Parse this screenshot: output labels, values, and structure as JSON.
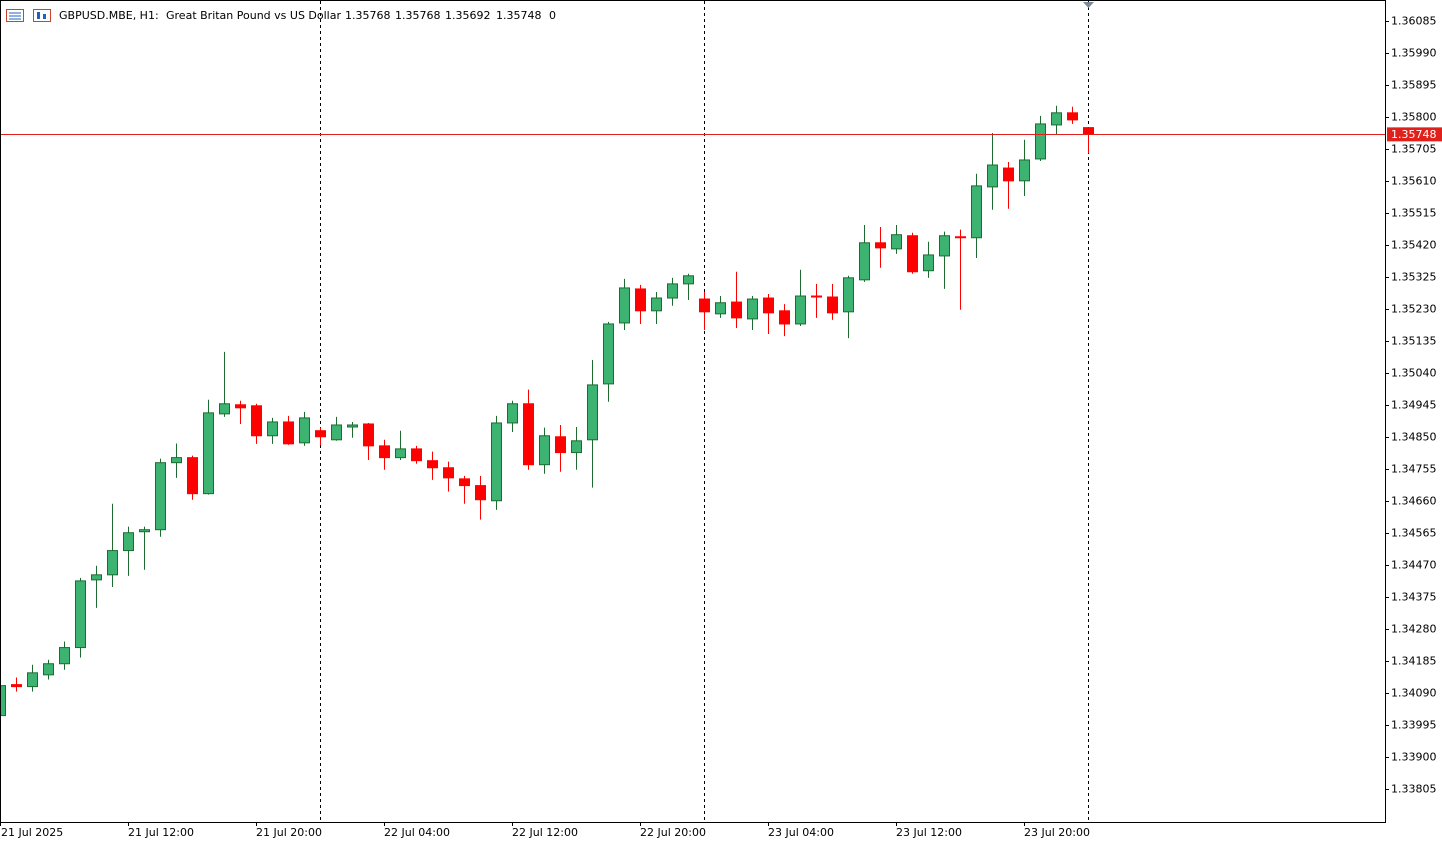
{
  "chart_data": {
    "type": "candlestick",
    "symbol": "GBPUSD.MBE, H1:",
    "description": "Great Britan Pound vs US Dollar",
    "header_values": [
      1.35768,
      1.35768,
      1.35692,
      1.35748,
      0
    ],
    "current_price": 1.35748,
    "up_color": "#3cb371",
    "down_color": "#ff0000",
    "price_line_color": "#e0201a",
    "categories": [
      "21 Jul 2025",
      null,
      null,
      null,
      null,
      null,
      null,
      null,
      "21 Jul 12:00",
      null,
      null,
      null,
      null,
      null,
      null,
      null,
      "21 Jul 20:00",
      null,
      null,
      null,
      null,
      null,
      null,
      null,
      "22 Jul 04:00",
      null,
      null,
      null,
      null,
      null,
      null,
      null,
      "22 Jul 12:00",
      null,
      null,
      null,
      null,
      null,
      null,
      null,
      "22 Jul 20:00",
      null,
      null,
      null,
      null,
      null,
      null,
      null,
      "23 Jul 04:00",
      null,
      null,
      null,
      null,
      null,
      null,
      null,
      "23 Jul 12:00",
      null,
      null,
      null,
      null,
      null,
      null,
      null,
      "23 Jul 20:00",
      null,
      null,
      null,
      null
    ],
    "open": [
      1.34022,
      1.34114,
      1.34108,
      1.34143,
      1.34176,
      1.34224,
      1.34425,
      1.3444,
      1.34512,
      1.34568,
      1.34574,
      1.34773,
      1.34788,
      1.34681,
      1.34918,
      1.34945,
      1.34942,
      1.34853,
      1.34894,
      1.34832,
      1.34868,
      1.34841,
      1.34879,
      1.34888,
      1.34823,
      1.34788,
      1.34814,
      1.34779,
      1.34758,
      1.34725,
      1.34705,
      1.3466,
      1.34891,
      1.34948,
      1.34767,
      1.3485,
      1.34803,
      1.34841,
      1.35007,
      1.35188,
      1.35289,
      1.35224,
      1.35262,
      1.35304,
      1.35259,
      1.35215,
      1.3525,
      1.352,
      1.35262,
      1.35224,
      1.35185,
      1.35268,
      1.35265,
      1.35221,
      1.35316,
      1.35426,
      1.35408,
      1.35447,
      1.35343,
      1.35387,
      1.35444,
      1.35441,
      1.35592,
      1.35648,
      1.3561,
      1.35675,
      1.35776,
      1.35812,
      1.35768
    ],
    "high": [
      1.34117,
      1.34135,
      1.34173,
      1.34188,
      1.34242,
      1.34431,
      1.34467,
      1.34651,
      1.34583,
      1.34583,
      1.34785,
      1.3483,
      1.34794,
      1.3496,
      1.35102,
      1.34957,
      1.34948,
      1.34906,
      1.34912,
      1.34924,
      1.34877,
      1.34909,
      1.34894,
      1.34891,
      1.34841,
      1.34868,
      1.34823,
      1.34806,
      1.34776,
      1.34734,
      1.34734,
      1.34912,
      1.34957,
      1.3499,
      1.34877,
      1.34885,
      1.34879,
      1.35078,
      1.35191,
      1.35319,
      1.35301,
      1.3528,
      1.35322,
      1.35334,
      1.3528,
      1.35268,
      1.3534,
      1.35268,
      1.35274,
      1.35244,
      1.35346,
      1.35304,
      1.35304,
      1.35328,
      1.35479,
      1.35473,
      1.35479,
      1.35456,
      1.35429,
      1.35459,
      1.35465,
      1.35631,
      1.35752,
      1.35666,
      1.35732,
      1.35803,
      1.35833,
      1.3583,
      1.35768
    ],
    "low": [
      1.34016,
      1.34093,
      1.34093,
      1.34129,
      1.34158,
      1.34194,
      1.34342,
      1.34404,
      1.34437,
      1.34455,
      1.34553,
      1.34728,
      1.34663,
      1.34678,
      1.34909,
      1.34888,
      1.34829,
      1.34829,
      1.34826,
      1.34823,
      1.34826,
      1.34838,
      1.34847,
      1.34781,
      1.34752,
      1.34781,
      1.3477,
      1.34722,
      1.34687,
      1.34651,
      1.34604,
      1.34633,
      1.34864,
      1.34752,
      1.3474,
      1.34746,
      1.34752,
      1.34699,
      1.34954,
      1.35167,
      1.35185,
      1.35185,
      1.35239,
      1.35256,
      1.35167,
      1.35203,
      1.35173,
      1.35167,
      1.35155,
      1.35149,
      1.35179,
      1.35203,
      1.35197,
      1.35143,
      1.3531,
      1.35352,
      1.35393,
      1.35334,
      1.35322,
      1.35289,
      1.35227,
      1.35381,
      1.35524,
      1.35527,
      1.35565,
      1.35669,
      1.35749,
      1.35779,
      1.35692
    ],
    "close": [
      1.34111,
      1.34108,
      1.34149,
      1.34176,
      1.34224,
      1.34422,
      1.3444,
      1.34512,
      1.34565,
      1.34574,
      1.34773,
      1.34788,
      1.34681,
      1.34921,
      1.34948,
      1.34936,
      1.34853,
      1.34894,
      1.34829,
      1.34906,
      1.3485,
      1.34885,
      1.34885,
      1.34823,
      1.34788,
      1.34814,
      1.34779,
      1.34758,
      1.34728,
      1.34705,
      1.34663,
      1.34891,
      1.34948,
      1.34767,
      1.34853,
      1.34803,
      1.34838,
      1.35004,
      1.35185,
      1.35292,
      1.35224,
      1.35262,
      1.35304,
      1.35328,
      1.35221,
      1.35248,
      1.35203,
      1.35259,
      1.35218,
      1.35185,
      1.35268,
      1.35265,
      1.35218,
      1.35322,
      1.35426,
      1.35411,
      1.3545,
      1.3534,
      1.3539,
      1.35447,
      1.35441,
      1.35595,
      1.35657,
      1.3561,
      1.35672,
      1.35779,
      1.35812,
      1.35791,
      1.35748
    ],
    "ylim": [
      1.33706,
      1.36147
    ],
    "yticks": [
      1.36085,
      {
        "value": 1.3599,
        "label": "1.35990"
      },
      1.35895,
      {
        "value": 1.358,
        "label": "1.35800"
      },
      1.35705,
      {
        "value": 1.3561,
        "label": "1.35610"
      },
      1.35515,
      {
        "value": 1.3542,
        "label": "1.35420"
      },
      1.35325,
      {
        "value": 1.3523,
        "label": "1.35230"
      },
      1.35135,
      {
        "value": 1.3504,
        "label": "1.35040"
      },
      1.34945,
      {
        "value": 1.3485,
        "label": "1.34850"
      },
      1.34755,
      {
        "value": 1.3466,
        "label": "1.34660"
      },
      1.34565,
      {
        "value": 1.3447,
        "label": "1.34470"
      },
      1.34375,
      {
        "value": 1.3428,
        "label": "1.34280"
      },
      1.34185,
      {
        "value": 1.3409,
        "label": "1.34090"
      },
      1.33995,
      {
        "value": 1.339,
        "label": "1.33900"
      },
      1.33805
    ]
  }
}
